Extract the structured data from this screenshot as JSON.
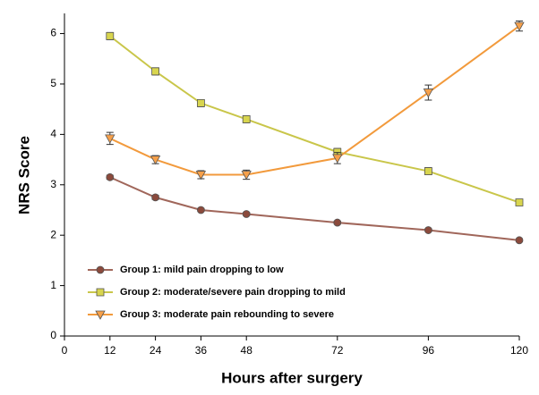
{
  "chart_data": {
    "type": "line",
    "x_label": "Hours after surgery",
    "y_label": "NRS Score",
    "x": [
      12,
      24,
      36,
      48,
      72,
      96,
      120
    ],
    "xlim": [
      0,
      120
    ],
    "xticks": [
      0,
      12,
      24,
      36,
      48,
      72,
      96,
      120
    ],
    "ylim": [
      0,
      6.4
    ],
    "yticks": [
      0,
      1,
      2,
      3,
      4,
      5,
      6
    ],
    "legend": "lower-left",
    "series": [
      {
        "name": "Group 1: mild pain dropping to low",
        "color": "#a0665a",
        "marker_color": "#8b4a3c",
        "marker": "circle",
        "values": [
          3.15,
          2.75,
          2.5,
          2.42,
          2.25,
          2.1,
          1.9
        ],
        "errors": [
          0.04,
          0.04,
          0.03,
          0.03,
          0.03,
          0.03,
          0.03
        ]
      },
      {
        "name": "Group 2: moderate/severe pain dropping to mild",
        "color": "#c9c64a",
        "marker_color": "#d8d54e",
        "marker": "square",
        "values": [
          5.95,
          5.25,
          4.62,
          4.3,
          3.65,
          3.27,
          2.65
        ],
        "errors": [
          0.07,
          0.07,
          0.07,
          0.07,
          0.07,
          0.07,
          0.06
        ]
      },
      {
        "name": "Group 3: moderate pain rebounding to severe",
        "color": "#f29a3c",
        "marker_color": "#f6a04a",
        "marker": "triangle-down",
        "values": [
          3.92,
          3.5,
          3.2,
          3.2,
          3.53,
          4.83,
          6.15
        ],
        "errors": [
          0.12,
          0.08,
          0.08,
          0.09,
          0.11,
          0.15,
          0.1
        ]
      }
    ]
  }
}
